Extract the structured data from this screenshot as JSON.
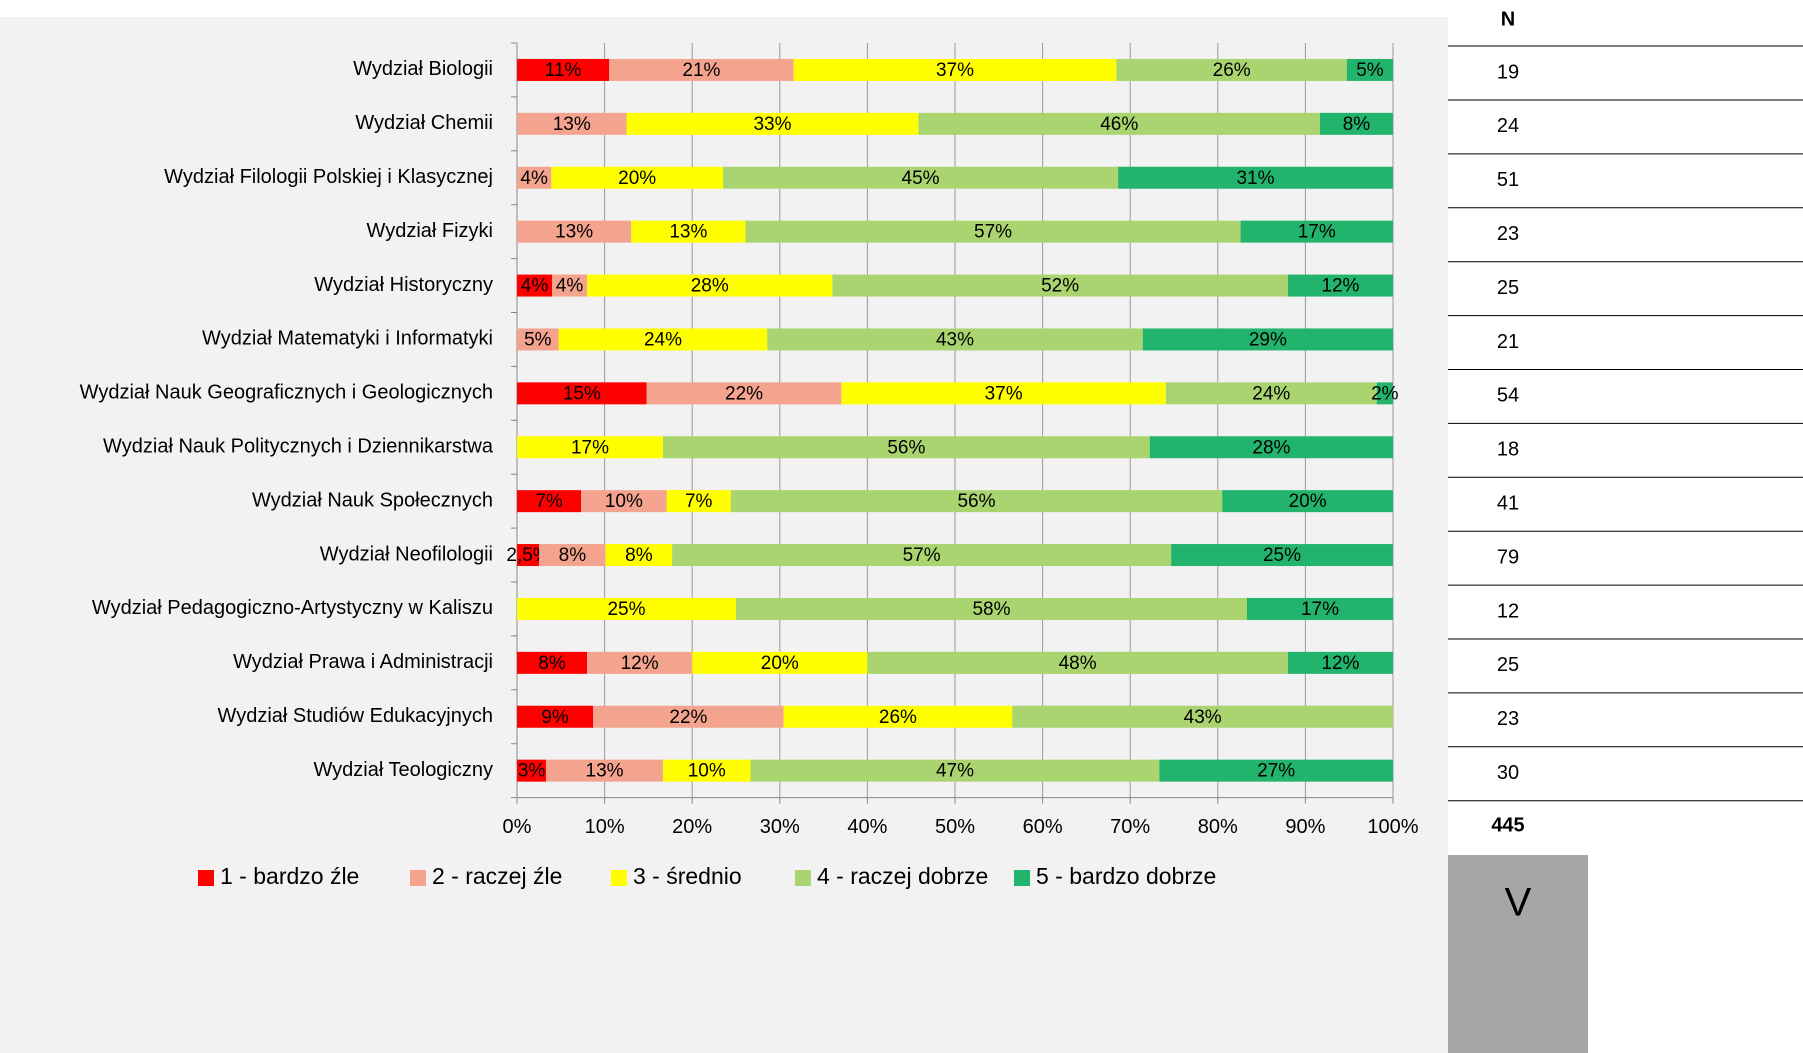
{
  "chart_data": {
    "type": "stacked-bar-horizontal",
    "categories": [
      "Wydział Biologii",
      "Wydział Chemii",
      "Wydział Filologii Polskiej i Klasycznej",
      "Wydział Fizyki",
      "Wydział Historyczny",
      "Wydział Matematyki i Informatyki",
      "Wydział Nauk Geograficznych i Geologicznych",
      "Wydział Nauk Politycznych i Dziennikarstwa",
      "Wydział Nauk Społecznych",
      "Wydział Neofilologii",
      "Wydział Pedagogiczno-Artystyczny w Kaliszu",
      "Wydział Prawa i Administracji",
      "Wydział Studiów Edukacyjnych",
      "Wydział Teologiczny"
    ],
    "series": [
      {
        "name": "1 - bardzo źle",
        "color": "#ff0000",
        "values": [
          10.53,
          null,
          null,
          null,
          4,
          null,
          14.81,
          null,
          7.32,
          2.53,
          null,
          8,
          8.7,
          3.33
        ],
        "value_labels": [
          "11%",
          null,
          null,
          null,
          "4%",
          null,
          "15%",
          null,
          "7%",
          "2,5%",
          null,
          "8%",
          "9%",
          "3%"
        ]
      },
      {
        "name": "2 - raczej źle",
        "color": "#f4a48e",
        "values": [
          21.05,
          12.5,
          3.92,
          13.04,
          4,
          4.76,
          22.22,
          null,
          9.76,
          7.59,
          null,
          12,
          21.74,
          13.33
        ],
        "value_labels": [
          "21%",
          "13%",
          "4%",
          "13%",
          "4%",
          "5%",
          "22%",
          null,
          "10%",
          "8%",
          null,
          "12%",
          "22%",
          "13%"
        ]
      },
      {
        "name": "3 - średnio",
        "color": "#ffff00",
        "values": [
          36.84,
          33.33,
          19.6,
          13.04,
          28,
          23.81,
          37.04,
          16.67,
          7.32,
          7.59,
          25,
          20,
          26.09,
          10
        ],
        "value_labels": [
          "37%",
          "33%",
          "20%",
          "13%",
          "28%",
          "24%",
          "37%",
          "17%",
          "7%",
          "8%",
          "25%",
          "20%",
          "26%",
          "10%"
        ]
      },
      {
        "name": "4 - raczej dobrze",
        "color": "#a9d470",
        "values": [
          26.32,
          45.83,
          45.1,
          56.52,
          52,
          42.86,
          24.07,
          55.56,
          56.1,
          56.96,
          58.33,
          48,
          43.48,
          46.67
        ],
        "value_labels": [
          "26%",
          "46%",
          "45%",
          "57%",
          "52%",
          "43%",
          "24%",
          "56%",
          "56%",
          "57%",
          "58%",
          "48%",
          "43%",
          "47%"
        ]
      },
      {
        "name": "5 - bardzo dobrze",
        "color": "#22b46c",
        "values": [
          5.26,
          8.33,
          31.37,
          17.39,
          12,
          28.57,
          1.85,
          27.78,
          19.51,
          25.32,
          16.67,
          12,
          null,
          26.67
        ],
        "value_labels": [
          "5%",
          "8%",
          "31%",
          "17%",
          "12%",
          "29%",
          "2%",
          "28%",
          "20%",
          "25%",
          "17%",
          "12%",
          null,
          "27%"
        ]
      }
    ],
    "xlim": [
      0,
      100
    ],
    "xticks": [
      {
        "value": 0,
        "label": "0%"
      },
      {
        "value": 10,
        "label": "10%"
      },
      {
        "value": 20,
        "label": "20%"
      },
      {
        "value": 30,
        "label": "30%"
      },
      {
        "value": 40,
        "label": "40%"
      },
      {
        "value": 50,
        "label": "50%"
      },
      {
        "value": 60,
        "label": "60%"
      },
      {
        "value": 70,
        "label": "70%"
      },
      {
        "value": 80,
        "label": "80%"
      },
      {
        "value": 90,
        "label": "90%"
      },
      {
        "value": 100,
        "label": "100%"
      }
    ],
    "grid": true,
    "legend": "bottom"
  },
  "table": {
    "header": "N",
    "rows": [
      19,
      24,
      51,
      23,
      25,
      21,
      54,
      18,
      41,
      79,
      12,
      25,
      23,
      30
    ],
    "total": 445
  },
  "button": "V"
}
